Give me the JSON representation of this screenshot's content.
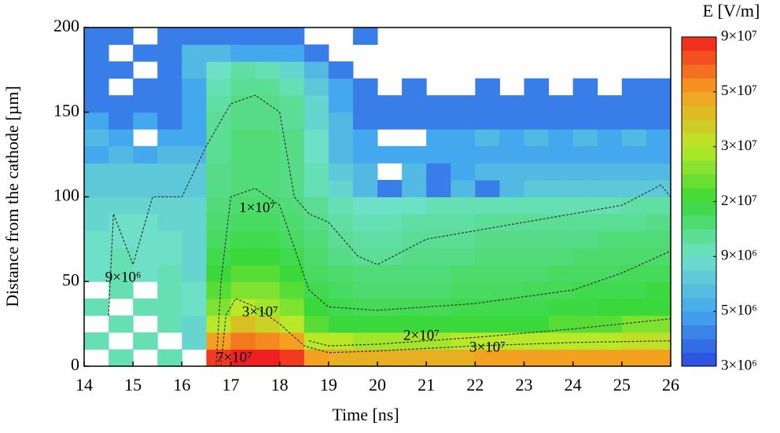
{
  "chart_data": {
    "type": "heatmap",
    "xlabel": "Time [ns]",
    "ylabel": "Distance from the cathode [µm]",
    "xlim": [
      14,
      26
    ],
    "ylim": [
      0,
      200
    ],
    "xticks": [
      14,
      15,
      16,
      17,
      18,
      19,
      20,
      21,
      22,
      23,
      24,
      25,
      26
    ],
    "yticks": [
      0,
      50,
      100,
      150,
      200
    ],
    "xbins": [
      14,
      14.5,
      15,
      15.5,
      16,
      16.5,
      17,
      17.5,
      18,
      18.5,
      19,
      19.5,
      20,
      20.5,
      21,
      21.5,
      22,
      22.5,
      23,
      23.5,
      24,
      24.5,
      25,
      25.5,
      26
    ],
    "ybins": [
      0,
      10,
      20,
      30,
      40,
      50,
      60,
      70,
      80,
      90,
      100,
      110,
      120,
      130,
      140,
      150,
      160,
      170,
      180,
      190,
      200
    ],
    "z": [
      [
        null,
        10000000.0,
        null,
        10000000.0,
        null,
        80000000.0,
        90000000.0,
        90000000.0,
        80000000.0,
        50000000.0,
        45000000.0,
        45000000.0,
        45000000.0,
        45000000.0,
        45000000.0,
        45000000.0,
        50000000.0,
        50000000.0,
        50000000.0,
        50000000.0,
        50000000.0,
        50000000.0,
        50000000.0,
        50000000.0
      ],
      [
        10000000.0,
        null,
        10000000.0,
        null,
        8000000.0,
        50000000.0,
        60000000.0,
        55000000.0,
        50000000.0,
        30000000.0,
        30000000.0,
        28000000.0,
        28000000.0,
        28000000.0,
        28000000.0,
        30000000.0,
        30000000.0,
        30000000.0,
        30000000.0,
        30000000.0,
        30000000.0,
        30000000.0,
        32000000.0,
        32000000.0
      ],
      [
        null,
        10000000.0,
        null,
        10000000.0,
        8000000.0,
        30000000.0,
        40000000.0,
        35000000.0,
        30000000.0,
        22000000.0,
        20000000.0,
        20000000.0,
        20000000.0,
        20000000.0,
        20000000.0,
        20000000.0,
        20000000.0,
        20000000.0,
        20000000.0,
        22000000.0,
        22000000.0,
        22000000.0,
        25000000.0,
        25000000.0
      ],
      [
        10000000.0,
        null,
        10000000.0,
        10000000.0,
        9000000.0,
        25000000.0,
        30000000.0,
        28000000.0,
        25000000.0,
        20000000.0,
        18000000.0,
        17000000.0,
        17000000.0,
        17000000.0,
        17000000.0,
        18000000.0,
        18000000.0,
        18000000.0,
        18000000.0,
        19000000.0,
        19000000.0,
        20000000.0,
        20000000.0,
        20000000.0
      ],
      [
        null,
        10000000.0,
        null,
        10000000.0,
        9000000.0,
        22000000.0,
        25000000.0,
        25000000.0,
        22000000.0,
        18000000.0,
        16000000.0,
        15000000.0,
        15000000.0,
        15000000.0,
        15000000.0,
        16000000.0,
        16000000.0,
        16000000.0,
        17000000.0,
        17000000.0,
        18000000.0,
        18000000.0,
        18000000.0,
        19000000.0
      ],
      [
        9000000.0,
        10000000.0,
        9000000.0,
        10000000.0,
        8000000.0,
        20000000.0,
        22000000.0,
        22000000.0,
        20000000.0,
        16000000.0,
        15000000.0,
        14000000.0,
        14000000.0,
        14000000.0,
        14000000.0,
        15000000.0,
        15000000.0,
        15000000.0,
        15000000.0,
        16000000.0,
        16000000.0,
        16000000.0,
        17000000.0,
        17000000.0
      ],
      [
        9000000.0,
        10000000.0,
        9000000.0,
        9000000.0,
        8000000.0,
        18000000.0,
        20000000.0,
        20000000.0,
        18000000.0,
        15000000.0,
        13000000.0,
        12000000.0,
        12000000.0,
        13000000.0,
        13000000.0,
        13000000.0,
        14000000.0,
        14000000.0,
        14000000.0,
        14000000.0,
        15000000.0,
        15000000.0,
        15000000.0,
        15000000.0
      ],
      [
        9000000.0,
        9000000.0,
        9000000.0,
        9000000.0,
        8000000.0,
        16000000.0,
        18000000.0,
        18000000.0,
        16000000.0,
        14000000.0,
        12000000.0,
        11000000.0,
        11000000.0,
        12000000.0,
        12000000.0,
        12000000.0,
        13000000.0,
        13000000.0,
        13000000.0,
        13000000.0,
        13000000.0,
        14000000.0,
        14000000.0,
        14000000.0
      ],
      [
        8000000.0,
        9000000.0,
        9000000.0,
        8000000.0,
        8000000.0,
        15000000.0,
        16000000.0,
        16000000.0,
        15000000.0,
        13000000.0,
        11000000.0,
        10000000.0,
        10000000.0,
        11000000.0,
        11000000.0,
        11000000.0,
        12000000.0,
        12000000.0,
        12000000.0,
        12000000.0,
        12000000.0,
        12000000.0,
        12000000.0,
        13000000.0
      ],
      [
        8000000.0,
        8000000.0,
        8000000.0,
        8000000.0,
        8000000.0,
        14000000.0,
        15000000.0,
        15000000.0,
        14000000.0,
        12000000.0,
        10000000.0,
        9000000.0,
        9000000.0,
        9000000.0,
        10000000.0,
        10000000.0,
        10000000.0,
        10000000.0,
        10000000.0,
        10000000.0,
        10000000.0,
        10000000.0,
        11000000.0,
        11000000.0
      ],
      [
        7000000.0,
        7000000.0,
        7000000.0,
        7000000.0,
        7000000.0,
        13000000.0,
        14000000.0,
        14000000.0,
        13000000.0,
        10000000.0,
        8000000.0,
        6000000.0,
        4000000.0,
        6000000.0,
        4000000.0,
        6000000.0,
        4000000.0,
        6000000.0,
        7000000.0,
        7000000.0,
        7000000.0,
        7000000.0,
        7000000.0,
        7000000.0
      ],
      [
        7000000.0,
        7000000.0,
        7000000.0,
        7000000.0,
        7000000.0,
        13000000.0,
        14000000.0,
        14000000.0,
        13000000.0,
        10000000.0,
        7000000.0,
        6000000.0,
        null,
        6000000.0,
        4000000.0,
        5000000.0,
        6000000.0,
        6000000.0,
        6000000.0,
        6000000.0,
        6000000.0,
        6000000.0,
        6000000.0,
        6000000.0
      ],
      [
        5000000.0,
        6000000.0,
        5000000.0,
        6000000.0,
        6000000.0,
        12000000.0,
        14000000.0,
        14000000.0,
        13000000.0,
        9000000.0,
        6000000.0,
        5000000.0,
        5000000.0,
        5000000.0,
        5000000.0,
        5000000.0,
        5000000.0,
        5000000.0,
        5000000.0,
        5000000.0,
        5000000.0,
        5000000.0,
        5000000.0,
        5000000.0
      ],
      [
        6000000.0,
        5000000.0,
        null,
        5000000.0,
        5000000.0,
        12000000.0,
        14000000.0,
        14000000.0,
        13000000.0,
        9000000.0,
        6000000.0,
        5000000.0,
        null,
        null,
        5000000.0,
        5000000.0,
        6000000.0,
        5000000.0,
        6000000.0,
        5000000.0,
        6000000.0,
        5000000.0,
        6000000.0,
        5000000.0
      ],
      [
        5000000.0,
        4000000.0,
        5000000.0,
        4000000.0,
        5000000.0,
        12000000.0,
        13000000.0,
        13000000.0,
        12000000.0,
        8000000.0,
        6000000.0,
        4000000.0,
        4000000.0,
        4000000.0,
        4000000.0,
        4000000.0,
        4000000.0,
        4000000.0,
        4000000.0,
        4000000.0,
        4000000.0,
        4000000.0,
        4000000.0,
        4000000.0
      ],
      [
        4000000.0,
        4000000.0,
        4000000.0,
        4000000.0,
        5000000.0,
        11000000.0,
        13000000.0,
        13000000.0,
        12000000.0,
        8000000.0,
        5000000.0,
        4000000.0,
        4000000.0,
        4000000.0,
        4000000.0,
        4000000.0,
        4000000.0,
        4000000.0,
        4000000.0,
        4000000.0,
        4000000.0,
        4000000.0,
        4000000.0,
        4000000.0
      ],
      [
        4000000.0,
        null,
        4000000.0,
        4000000.0,
        5000000.0,
        10000000.0,
        12000000.0,
        12000000.0,
        10000000.0,
        7000000.0,
        5000000.0,
        4000000.0,
        null,
        4000000.0,
        null,
        null,
        4000000.0,
        null,
        4000000.0,
        null,
        4000000.0,
        null,
        4000000.0,
        4000000.0
      ],
      [
        4000000.0,
        4000000.0,
        null,
        4000000.0,
        6000000.0,
        9000000.0,
        11000000.0,
        10000000.0,
        8000000.0,
        6000000.0,
        4000000.0,
        null,
        null,
        null,
        null,
        null,
        null,
        null,
        null,
        null,
        null,
        null,
        null,
        null
      ],
      [
        4000000.0,
        null,
        4000000.0,
        4000000.0,
        6000000.0,
        6000000.0,
        5000000.0,
        5000000.0,
        5000000.0,
        4000000.0,
        null,
        null,
        null,
        null,
        null,
        null,
        null,
        null,
        null,
        null,
        null,
        null,
        null,
        null
      ],
      [
        4000000.0,
        4000000.0,
        null,
        4000000.0,
        4000000.0,
        4000000.0,
        4000000.0,
        4000000.0,
        4000000.0,
        null,
        null,
        4000000.0,
        null,
        null,
        null,
        null,
        null,
        null,
        null,
        null,
        null,
        null,
        null,
        null
      ]
    ],
    "colorbar": {
      "title": "E [V/m]",
      "ticks": [
        {
          "value": 3000000,
          "label": "3×10⁶"
        },
        {
          "value": 5000000,
          "label": "5×10⁶"
        },
        {
          "value": 9000000,
          "label": "9×10⁶"
        },
        {
          "value": 20000000,
          "label": "2×10⁷"
        },
        {
          "value": 30000000,
          "label": "3×10⁷"
        },
        {
          "value": 50000000,
          "label": "5×10⁷"
        },
        {
          "value": 90000000,
          "label": "9×10⁷"
        }
      ],
      "colors": [
        "#2a48e0",
        "#44a8ee",
        "#6ee0c8",
        "#3ad83a",
        "#b8e828",
        "#f4a020",
        "#f02020"
      ]
    },
    "contours": [
      {
        "level": 9000000,
        "x": [
          14.5,
          14.6,
          15,
          15.4,
          16,
          16.5,
          17,
          17.5,
          18,
          18.3,
          18.6,
          19,
          19.6,
          20,
          21,
          22,
          23,
          24,
          25,
          25.8,
          26
        ],
        "y": [
          30,
          90,
          60,
          100,
          100,
          130,
          155,
          160,
          150,
          100,
          90,
          85,
          65,
          60,
          75,
          80,
          85,
          90,
          95,
          107,
          100
        ]
      },
      {
        "level": 10000000,
        "x": [
          16.7,
          16.8,
          17,
          17.5,
          18,
          18.3,
          18.6,
          19,
          20,
          22,
          24,
          25,
          26
        ],
        "y": [
          0,
          50,
          100,
          105,
          95,
          70,
          45,
          35,
          33,
          37,
          45,
          55,
          68
        ]
      },
      {
        "level": 20000000,
        "x": [
          18.6,
          19,
          20,
          22,
          24,
          26
        ],
        "y": [
          15,
          12,
          13,
          17,
          22,
          28
        ]
      },
      {
        "level": 30000000,
        "x": [
          16.8,
          16.9,
          17.1,
          17.5,
          18,
          18.5,
          19,
          20,
          22,
          24,
          26
        ],
        "y": [
          0,
          30,
          40,
          35,
          25,
          12,
          8,
          9,
          12,
          14,
          15
        ]
      }
    ],
    "annotations": [
      {
        "text": "9×10⁶",
        "x": 14.8,
        "y": 52
      },
      {
        "text": "1×10⁷",
        "x": 17.54,
        "y": 93
      },
      {
        "text": "3×10⁷",
        "x": 17.6,
        "y": 31.5
      },
      {
        "text": "7×10⁷",
        "x": 17.07,
        "y": 4.6
      },
      {
        "text": "2×10⁷",
        "x": 20.9,
        "y": 17.6
      },
      {
        "text": "3×10⁷",
        "x": 22.25,
        "y": 10.7
      }
    ]
  }
}
